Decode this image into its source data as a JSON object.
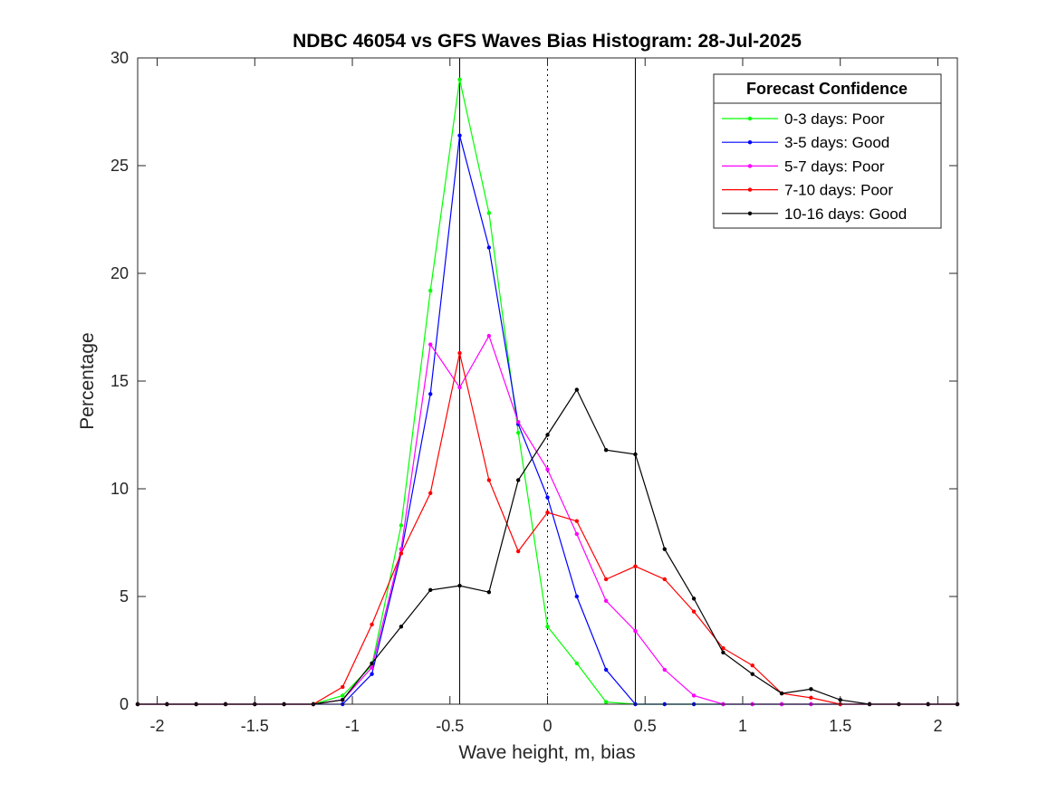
{
  "chart_data": {
    "type": "line",
    "title": "NDBC 46054 vs GFS Waves Bias Histogram: 28-Jul-2025",
    "xlabel": "Wave height, m, bias",
    "ylabel": "Percentage",
    "xlim": [
      -2.1,
      2.1
    ],
    "ylim": [
      0,
      30
    ],
    "xticks": [
      -2,
      -1.5,
      -1,
      -0.5,
      0,
      0.5,
      1,
      1.5,
      2
    ],
    "xtick_labels": [
      "-2",
      "-1.5",
      "-1",
      "-0.5",
      "0",
      "0.5",
      "1",
      "1.5",
      "2"
    ],
    "yticks": [
      0,
      5,
      10,
      15,
      20,
      25,
      30
    ],
    "ytick_labels": [
      "0",
      "5",
      "10",
      "15",
      "20",
      "25",
      "30"
    ],
    "reference_lines": [
      {
        "x": -0.45,
        "style": "solid",
        "color": "#000000"
      },
      {
        "x": 0,
        "style": "dotted",
        "color": "#000000"
      },
      {
        "x": 0.45,
        "style": "solid",
        "color": "#000000"
      }
    ],
    "legend": {
      "title": "Forecast Confidence",
      "placement": "top-right"
    },
    "x": [
      -2.1,
      -1.95,
      -1.8,
      -1.65,
      -1.5,
      -1.35,
      -1.2,
      -1.05,
      -0.9,
      -0.75,
      -0.6,
      -0.45,
      -0.3,
      -0.15,
      0,
      0.15,
      0.3,
      0.45,
      0.6,
      0.75,
      0.9,
      1.05,
      1.2,
      1.35,
      1.5,
      1.65,
      1.8,
      1.95,
      2.1
    ],
    "series": [
      {
        "name": "0-3 days: Poor",
        "color": "#00ff00",
        "values": [
          0,
          0,
          0,
          0,
          0,
          0,
          0,
          0.4,
          1.8,
          8.3,
          19.2,
          29.0,
          22.8,
          12.6,
          3.6,
          1.9,
          0.1,
          0,
          0,
          0,
          0,
          0,
          0,
          0,
          0,
          0,
          0,
          0,
          0
        ]
      },
      {
        "name": "3-5 days: Good",
        "color": "#0000ff",
        "values": [
          0,
          0,
          0,
          0,
          0,
          0,
          0,
          0,
          1.4,
          7.0,
          14.4,
          26.4,
          21.2,
          13.0,
          9.6,
          5.0,
          1.6,
          0,
          0,
          0,
          0,
          0,
          0,
          0,
          0,
          0,
          0,
          0,
          0
        ]
      },
      {
        "name": "5-7 days: Poor",
        "color": "#ff00ff",
        "values": [
          0,
          0,
          0,
          0,
          0,
          0,
          0,
          0.2,
          1.7,
          7.2,
          16.7,
          14.7,
          17.1,
          13.1,
          10.9,
          7.9,
          4.8,
          3.4,
          1.6,
          0.4,
          0,
          0,
          0,
          0,
          0,
          0,
          0,
          0,
          0
        ]
      },
      {
        "name": "7-10 days: Poor",
        "color": "#ff0000",
        "values": [
          0,
          0,
          0,
          0,
          0,
          0,
          0,
          0.8,
          3.7,
          7.0,
          9.8,
          16.3,
          10.4,
          7.1,
          8.9,
          8.5,
          5.8,
          6.4,
          5.8,
          4.3,
          2.6,
          1.8,
          0.5,
          0.3,
          0,
          0,
          0,
          0,
          0
        ]
      },
      {
        "name": "10-16 days: Good",
        "color": "#000000",
        "values": [
          0,
          0,
          0,
          0,
          0,
          0,
          0,
          0.2,
          1.9,
          3.6,
          5.3,
          5.5,
          5.2,
          10.4,
          12.5,
          14.6,
          11.8,
          11.6,
          7.2,
          4.9,
          2.4,
          1.4,
          0.5,
          0.7,
          0.2,
          0,
          0,
          0,
          0
        ]
      }
    ]
  }
}
